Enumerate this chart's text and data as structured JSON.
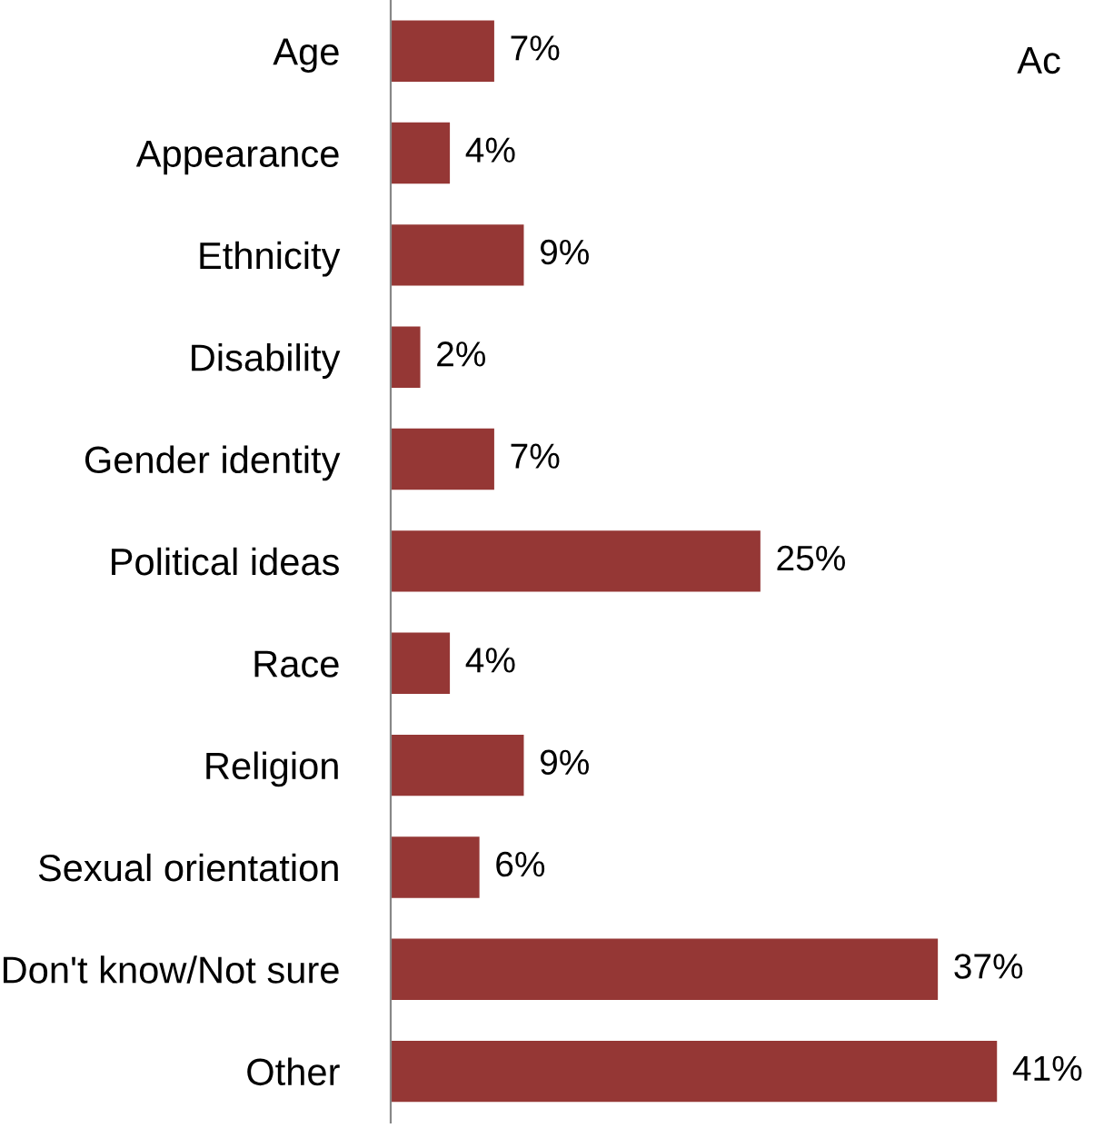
{
  "chart_data": {
    "type": "bar",
    "orientation": "horizontal",
    "categories": [
      "Age",
      "Appearance",
      "Ethnicity",
      "Disability",
      "Gender identity",
      "Political ideas",
      "Race",
      "Religion",
      "Sexual orientation",
      "Don't know/Not sure",
      "Other"
    ],
    "values": [
      7,
      4,
      9,
      2,
      7,
      25,
      4,
      9,
      6,
      37,
      41
    ],
    "value_labels": [
      "7%",
      "4%",
      "9%",
      "2%",
      "7%",
      "25%",
      "4%",
      "9%",
      "6%",
      "37%",
      "41%"
    ],
    "color": "#953735",
    "grid": false,
    "legend": false,
    "annotations": [
      "Ac"
    ]
  }
}
